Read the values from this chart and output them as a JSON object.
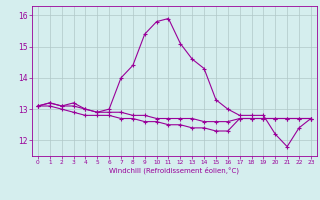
{
  "xlabel": "Windchill (Refroidissement éolien,°C)",
  "x_hours": [
    0,
    1,
    2,
    3,
    4,
    5,
    6,
    7,
    8,
    9,
    10,
    11,
    12,
    13,
    14,
    15,
    16,
    17,
    18,
    19,
    20,
    21,
    22,
    23
  ],
  "line1": [
    13.1,
    13.2,
    13.1,
    13.2,
    13.0,
    12.9,
    13.0,
    14.0,
    14.4,
    15.4,
    15.8,
    15.9,
    15.1,
    14.6,
    14.3,
    13.3,
    13.0,
    12.8,
    12.8,
    12.8,
    12.2,
    11.8,
    12.4,
    12.7
  ],
  "line2": [
    13.1,
    13.1,
    13.0,
    12.9,
    12.8,
    12.8,
    12.8,
    12.7,
    12.7,
    12.6,
    12.6,
    12.5,
    12.5,
    12.4,
    12.4,
    12.3,
    12.3,
    12.7,
    12.7,
    12.7,
    12.7,
    12.7,
    12.7,
    12.7
  ],
  "line3": [
    13.1,
    13.2,
    13.1,
    13.1,
    13.0,
    12.9,
    12.9,
    12.9,
    12.8,
    12.8,
    12.7,
    12.7,
    12.7,
    12.7,
    12.6,
    12.6,
    12.6,
    12.7,
    12.7,
    12.7,
    12.7,
    12.7,
    12.7,
    12.7
  ],
  "ylim": [
    11.5,
    16.3
  ],
  "yticks": [
    12,
    13,
    14,
    15,
    16
  ],
  "line_color": "#990099",
  "bg_color": "#d5eeee",
  "grid_color": "#b0c8c8"
}
